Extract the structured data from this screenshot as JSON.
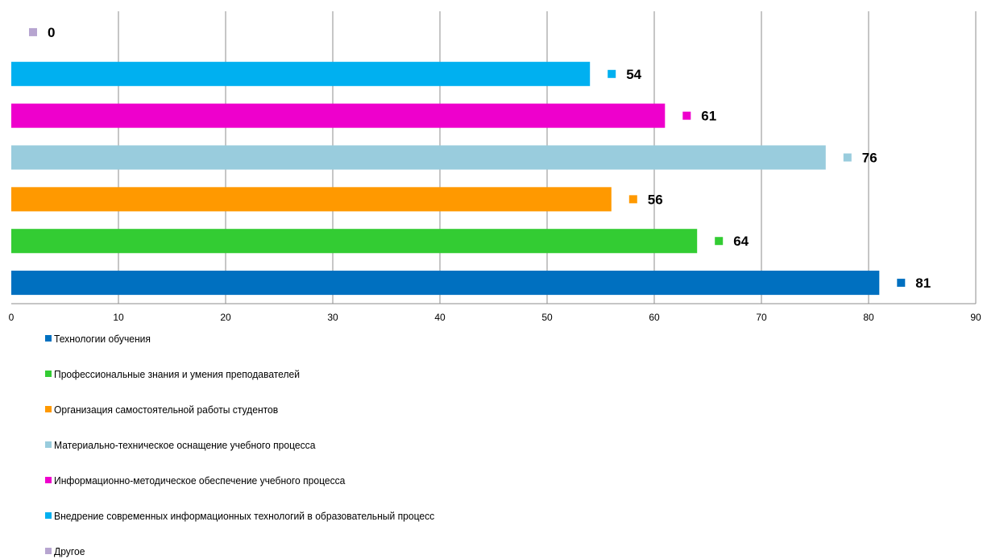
{
  "chart_data": {
    "type": "bar",
    "orientation": "horizontal",
    "title": "",
    "xlabel": "",
    "ylabel": "",
    "xlim": [
      0,
      90
    ],
    "x_ticks": [
      "0",
      "10",
      "20",
      "30",
      "40",
      "50",
      "60",
      "70",
      "80",
      "90"
    ],
    "grid": "vertical",
    "legend_position": "bottom",
    "series": [
      {
        "name": "Технологии обучения",
        "value": 81,
        "color": "#0070C0"
      },
      {
        "name": "Профессиональные знания и умения преподавателей",
        "value": 64,
        "color": "#33CC33"
      },
      {
        "name": "Организация самостоятельной работы студентов",
        "value": 56,
        "color": "#FF9900"
      },
      {
        "name": "Материально-техническое оснащение учебного процесса",
        "value": 76,
        "color": "#99CCDD"
      },
      {
        "name": "Информационно-методическое обеспечение учебного процесса",
        "value": 61,
        "color": "#EE00CC"
      },
      {
        "name": "Внедрение современных информационных технологий в образовательный процесс",
        "value": 54,
        "color": "#00B0F0"
      },
      {
        "name": "Другое",
        "value": 0,
        "color": "#B7A5D0"
      }
    ]
  }
}
